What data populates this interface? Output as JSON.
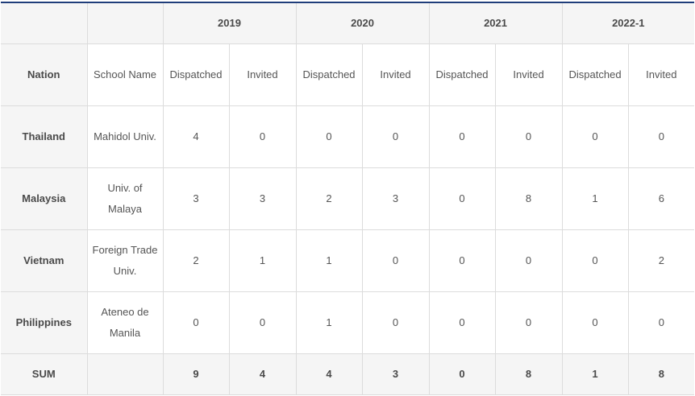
{
  "header": {
    "years": [
      "2019",
      "2020",
      "2021",
      "2022-1"
    ],
    "nation_label": "Nation",
    "school_label": "School Name",
    "dispatched_label": "Dispatched",
    "invited_label": "Invited"
  },
  "rows": [
    {
      "nation": "Thailand",
      "school": "Mahidol Univ.",
      "values": [
        "4",
        "0",
        "0",
        "0",
        "0",
        "0",
        "0",
        "0"
      ]
    },
    {
      "nation": "Malaysia",
      "school": "Univ. of Malaya",
      "values": [
        "3",
        "3",
        "2",
        "3",
        "0",
        "8",
        "1",
        "6"
      ]
    },
    {
      "nation": "Vietnam",
      "school": "Foreign Trade Univ.",
      "values": [
        "2",
        "1",
        "1",
        "0",
        "0",
        "0",
        "0",
        "2"
      ]
    },
    {
      "nation": "Philippines",
      "school": "Ateneo de Manila",
      "values": [
        "0",
        "0",
        "1",
        "0",
        "0",
        "0",
        "0",
        "0"
      ]
    }
  ],
  "sum": {
    "label": "SUM",
    "values": [
      "9",
      "4",
      "4",
      "3",
      "0",
      "8",
      "1",
      "8"
    ]
  }
}
